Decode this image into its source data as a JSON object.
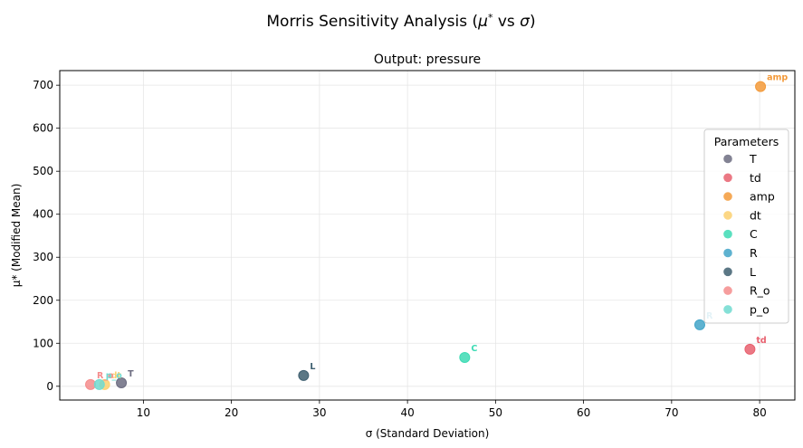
{
  "figure": {
    "suptitle_prefix": "Morris Sensitivity Analysis (",
    "suptitle_mu": "μ",
    "suptitle_star": "*",
    "suptitle_vs": " vs ",
    "suptitle_sigma": "σ",
    "suptitle_suffix": ")"
  },
  "chart_data": {
    "type": "scatter",
    "title": "Output: pressure",
    "xlabel": "σ (Standard Deviation)",
    "ylabel": "μ* (Modified Mean)",
    "xlim": [
      0.5,
      84
    ],
    "ylim": [
      -32,
      734
    ],
    "xticks": [
      10,
      20,
      30,
      40,
      50,
      60,
      70,
      80
    ],
    "yticks": [
      0,
      100,
      200,
      300,
      400,
      500,
      600,
      700
    ],
    "grid": true,
    "legend": {
      "title": "Parameters",
      "placement": "right"
    },
    "points": [
      {
        "name": "T",
        "x": 7.5,
        "y": 8,
        "color": "#6c6c80"
      },
      {
        "name": "td",
        "x": 78.9,
        "y": 86,
        "color": "#e8606e"
      },
      {
        "name": "amp",
        "x": 80.1,
        "y": 697,
        "color": "#f39a3a"
      },
      {
        "name": "dt",
        "x": 5.6,
        "y": 4,
        "color": "#fbd070"
      },
      {
        "name": "C",
        "x": 46.5,
        "y": 67,
        "color": "#3ddbb4"
      },
      {
        "name": "R",
        "x": 73.2,
        "y": 143,
        "color": "#42a5c8"
      },
      {
        "name": "L",
        "x": 28.2,
        "y": 25,
        "color": "#3e5f70"
      },
      {
        "name": "R_o",
        "x": 4.0,
        "y": 4,
        "color": "#f58c8c"
      },
      {
        "name": "p_o",
        "x": 5.0,
        "y": 4,
        "color": "#70dbd0"
      }
    ]
  }
}
